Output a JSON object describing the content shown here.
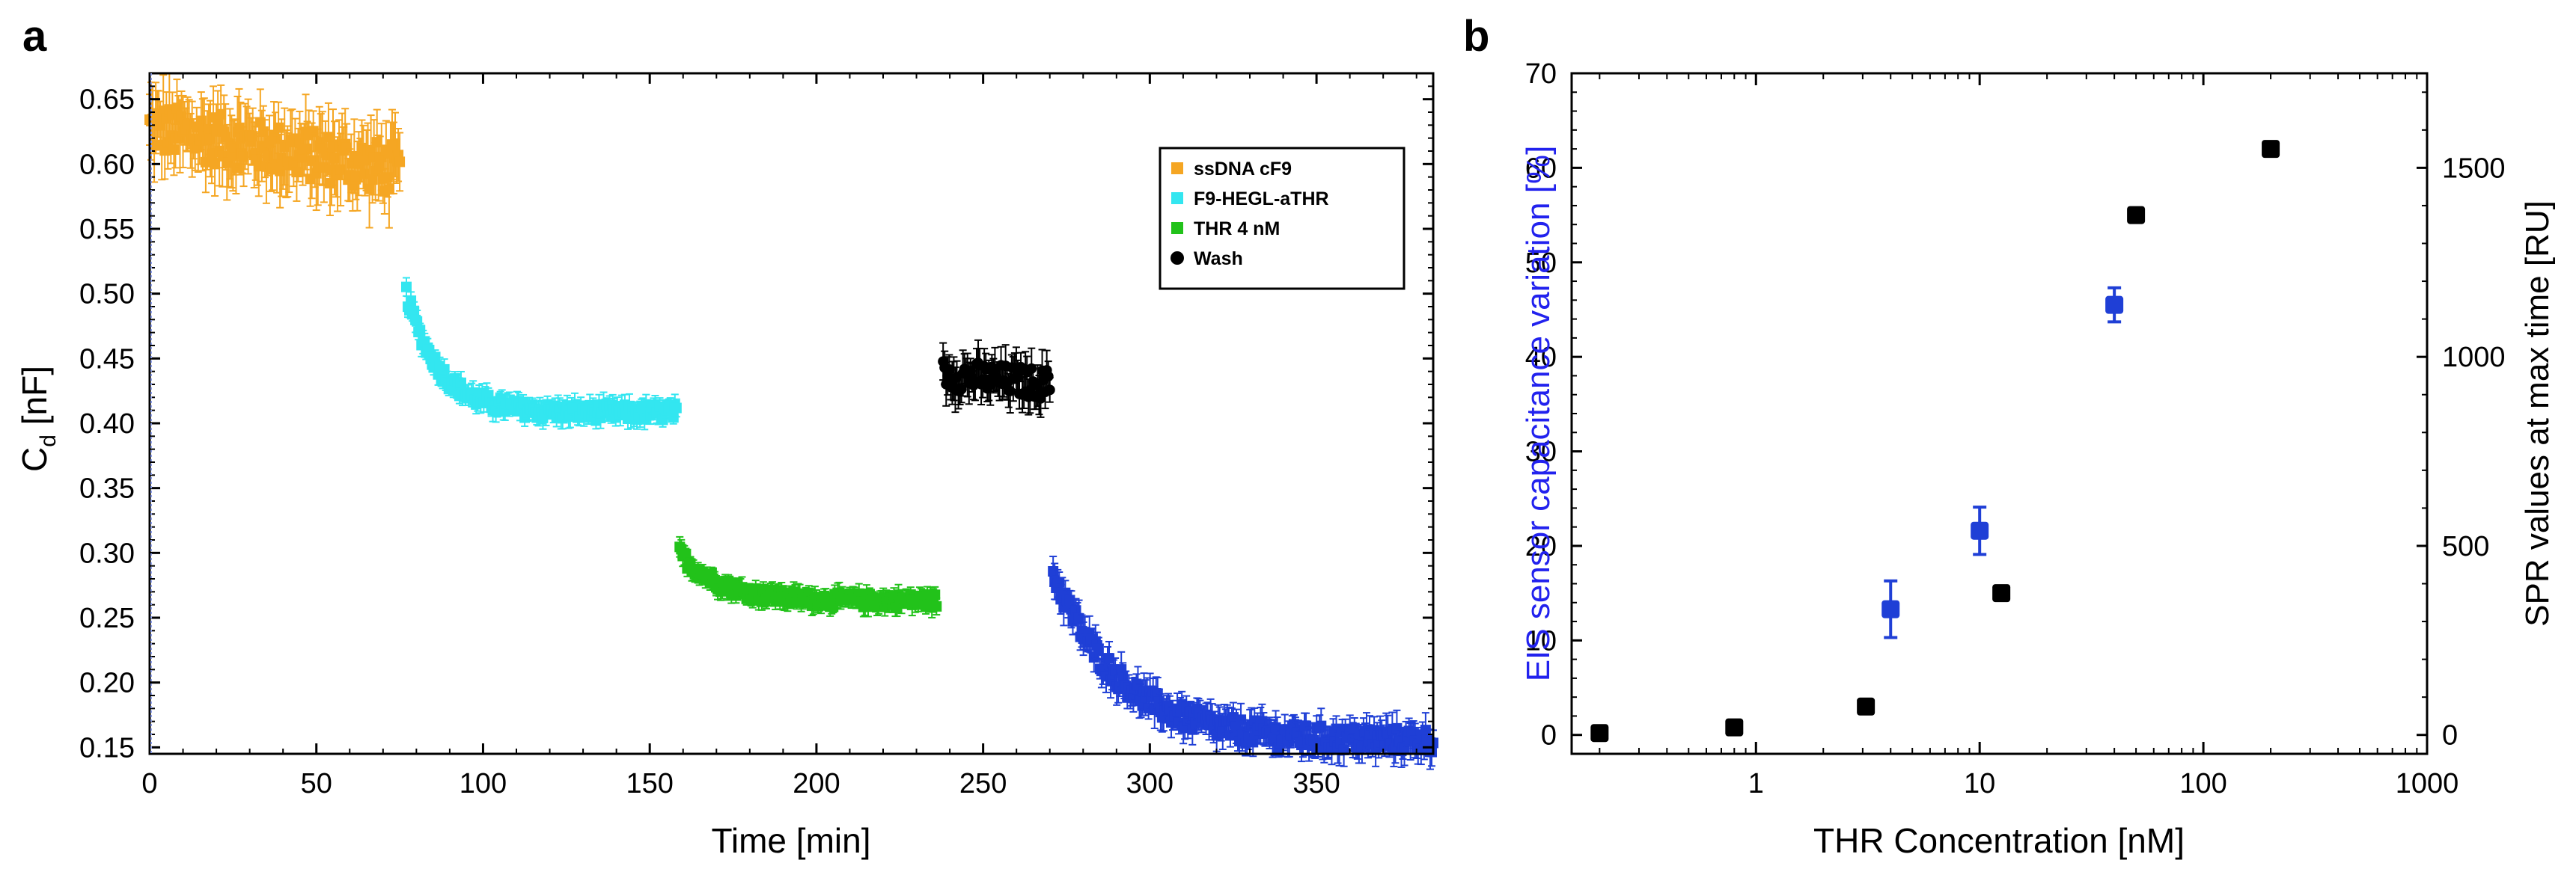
{
  "colors": {
    "orange": "#f5a623",
    "cyan": "#33e6f0",
    "green": "#22c21a",
    "black": "#000000",
    "blue": "#1f3fd6",
    "blue_label": "#2222ee"
  },
  "chart_data": [
    {
      "panel": "a",
      "type": "scatter",
      "xlabel": "Time [min]",
      "ylabel_main": "C",
      "ylabel_sub": "d",
      "ylabel_unit": " [nF]",
      "xlim": [
        0,
        385
      ],
      "ylim": [
        0.145,
        0.67
      ],
      "xticks": [
        0,
        50,
        100,
        150,
        200,
        250,
        300,
        350
      ],
      "xtick_labels": [
        "0",
        "50",
        "100",
        "150",
        "200",
        "250",
        "300",
        "350"
      ],
      "yticks": [
        0.15,
        0.2,
        0.25,
        0.3,
        0.35,
        0.4,
        0.45,
        0.5,
        0.55,
        0.6,
        0.65
      ],
      "ytick_labels": [
        "0.15",
        "0.20",
        "0.25",
        "0.30",
        "0.35",
        "0.40",
        "0.45",
        "0.50",
        "0.55",
        "0.60",
        "0.65"
      ],
      "legend_position": "top-right",
      "series": [
        {
          "name": "ssDNA cF9",
          "color": "#f5a623",
          "x_start": 0,
          "x_end": 75,
          "kind": "linear",
          "y_start": 0.628,
          "y_end": 0.595,
          "err": 0.025
        },
        {
          "name": "F9-HEGL-aTHR",
          "color": "#33e6f0",
          "x_start": 77,
          "x_end": 158,
          "kind": "decay",
          "y_start": 0.5,
          "y_end": 0.408,
          "tau": 10,
          "err": 0.008
        },
        {
          "name": "THR 4 nM",
          "color": "#22c21a",
          "x_start": 159,
          "x_end": 236,
          "kind": "decay",
          "y_start": 0.3,
          "y_end": 0.263,
          "tau": 12,
          "err": 0.007
        },
        {
          "name": "Wash",
          "color": "#000000",
          "x_start": 238,
          "x_end": 270,
          "kind": "linear",
          "y_start": 0.438,
          "y_end": 0.43,
          "err": 0.015
        },
        {
          "name": "",
          "color": "#1f3fd6",
          "x_start": 271,
          "x_end": 385,
          "kind": "decay",
          "y_start": 0.285,
          "y_end": 0.155,
          "tau": 20,
          "err": 0.012
        }
      ],
      "legend": [
        {
          "label": "ssDNA cF9",
          "color": "#f5a623"
        },
        {
          "label": "F9-HEGL-aTHR",
          "color": "#33e6f0"
        },
        {
          "label": "THR 4 nM",
          "color": "#22c21a"
        },
        {
          "label": "Wash",
          "color": "#000000"
        }
      ]
    },
    {
      "panel": "b",
      "type": "scatter",
      "xscale": "log",
      "xlabel": "THR Concentration [nM]",
      "ylabel_left": "EIS sensor capacitance variation [%]",
      "ylabel_right": "SPR values at max time [RU]",
      "xlim": [
        0.15,
        1000
      ],
      "ylim_left": [
        -2,
        70
      ],
      "ylim_right": [
        -50,
        1750
      ],
      "xtick_values": [
        1,
        10,
        100,
        1000
      ],
      "xtick_labels": [
        "1",
        "10",
        "100",
        "1000"
      ],
      "yticks_left": [
        0,
        10,
        20,
        30,
        40,
        50,
        60,
        70
      ],
      "ytick_labels_left": [
        "0",
        "10",
        "20",
        "30",
        "40",
        "50",
        "60",
        "70"
      ],
      "yticks_right": [
        0,
        500,
        1000,
        1500
      ],
      "ytick_labels_right": [
        "0",
        "500",
        "1000",
        "1500"
      ],
      "series": [
        {
          "name": "EIS",
          "axis": "left",
          "color": "#1f3fd6",
          "x": [
            4,
            10,
            40
          ],
          "y": [
            13.3,
            21.6,
            45.5
          ],
          "err": [
            3.0,
            2.5,
            1.8
          ]
        },
        {
          "name": "SPR",
          "axis": "right",
          "color": "#000000",
          "x": [
            0.2,
            0.8,
            3.1,
            12.5,
            50,
            200
          ],
          "y": [
            5,
            20,
            75,
            375,
            1375,
            1550
          ],
          "err": [
            0,
            0,
            0,
            0,
            0,
            0
          ]
        }
      ]
    }
  ]
}
